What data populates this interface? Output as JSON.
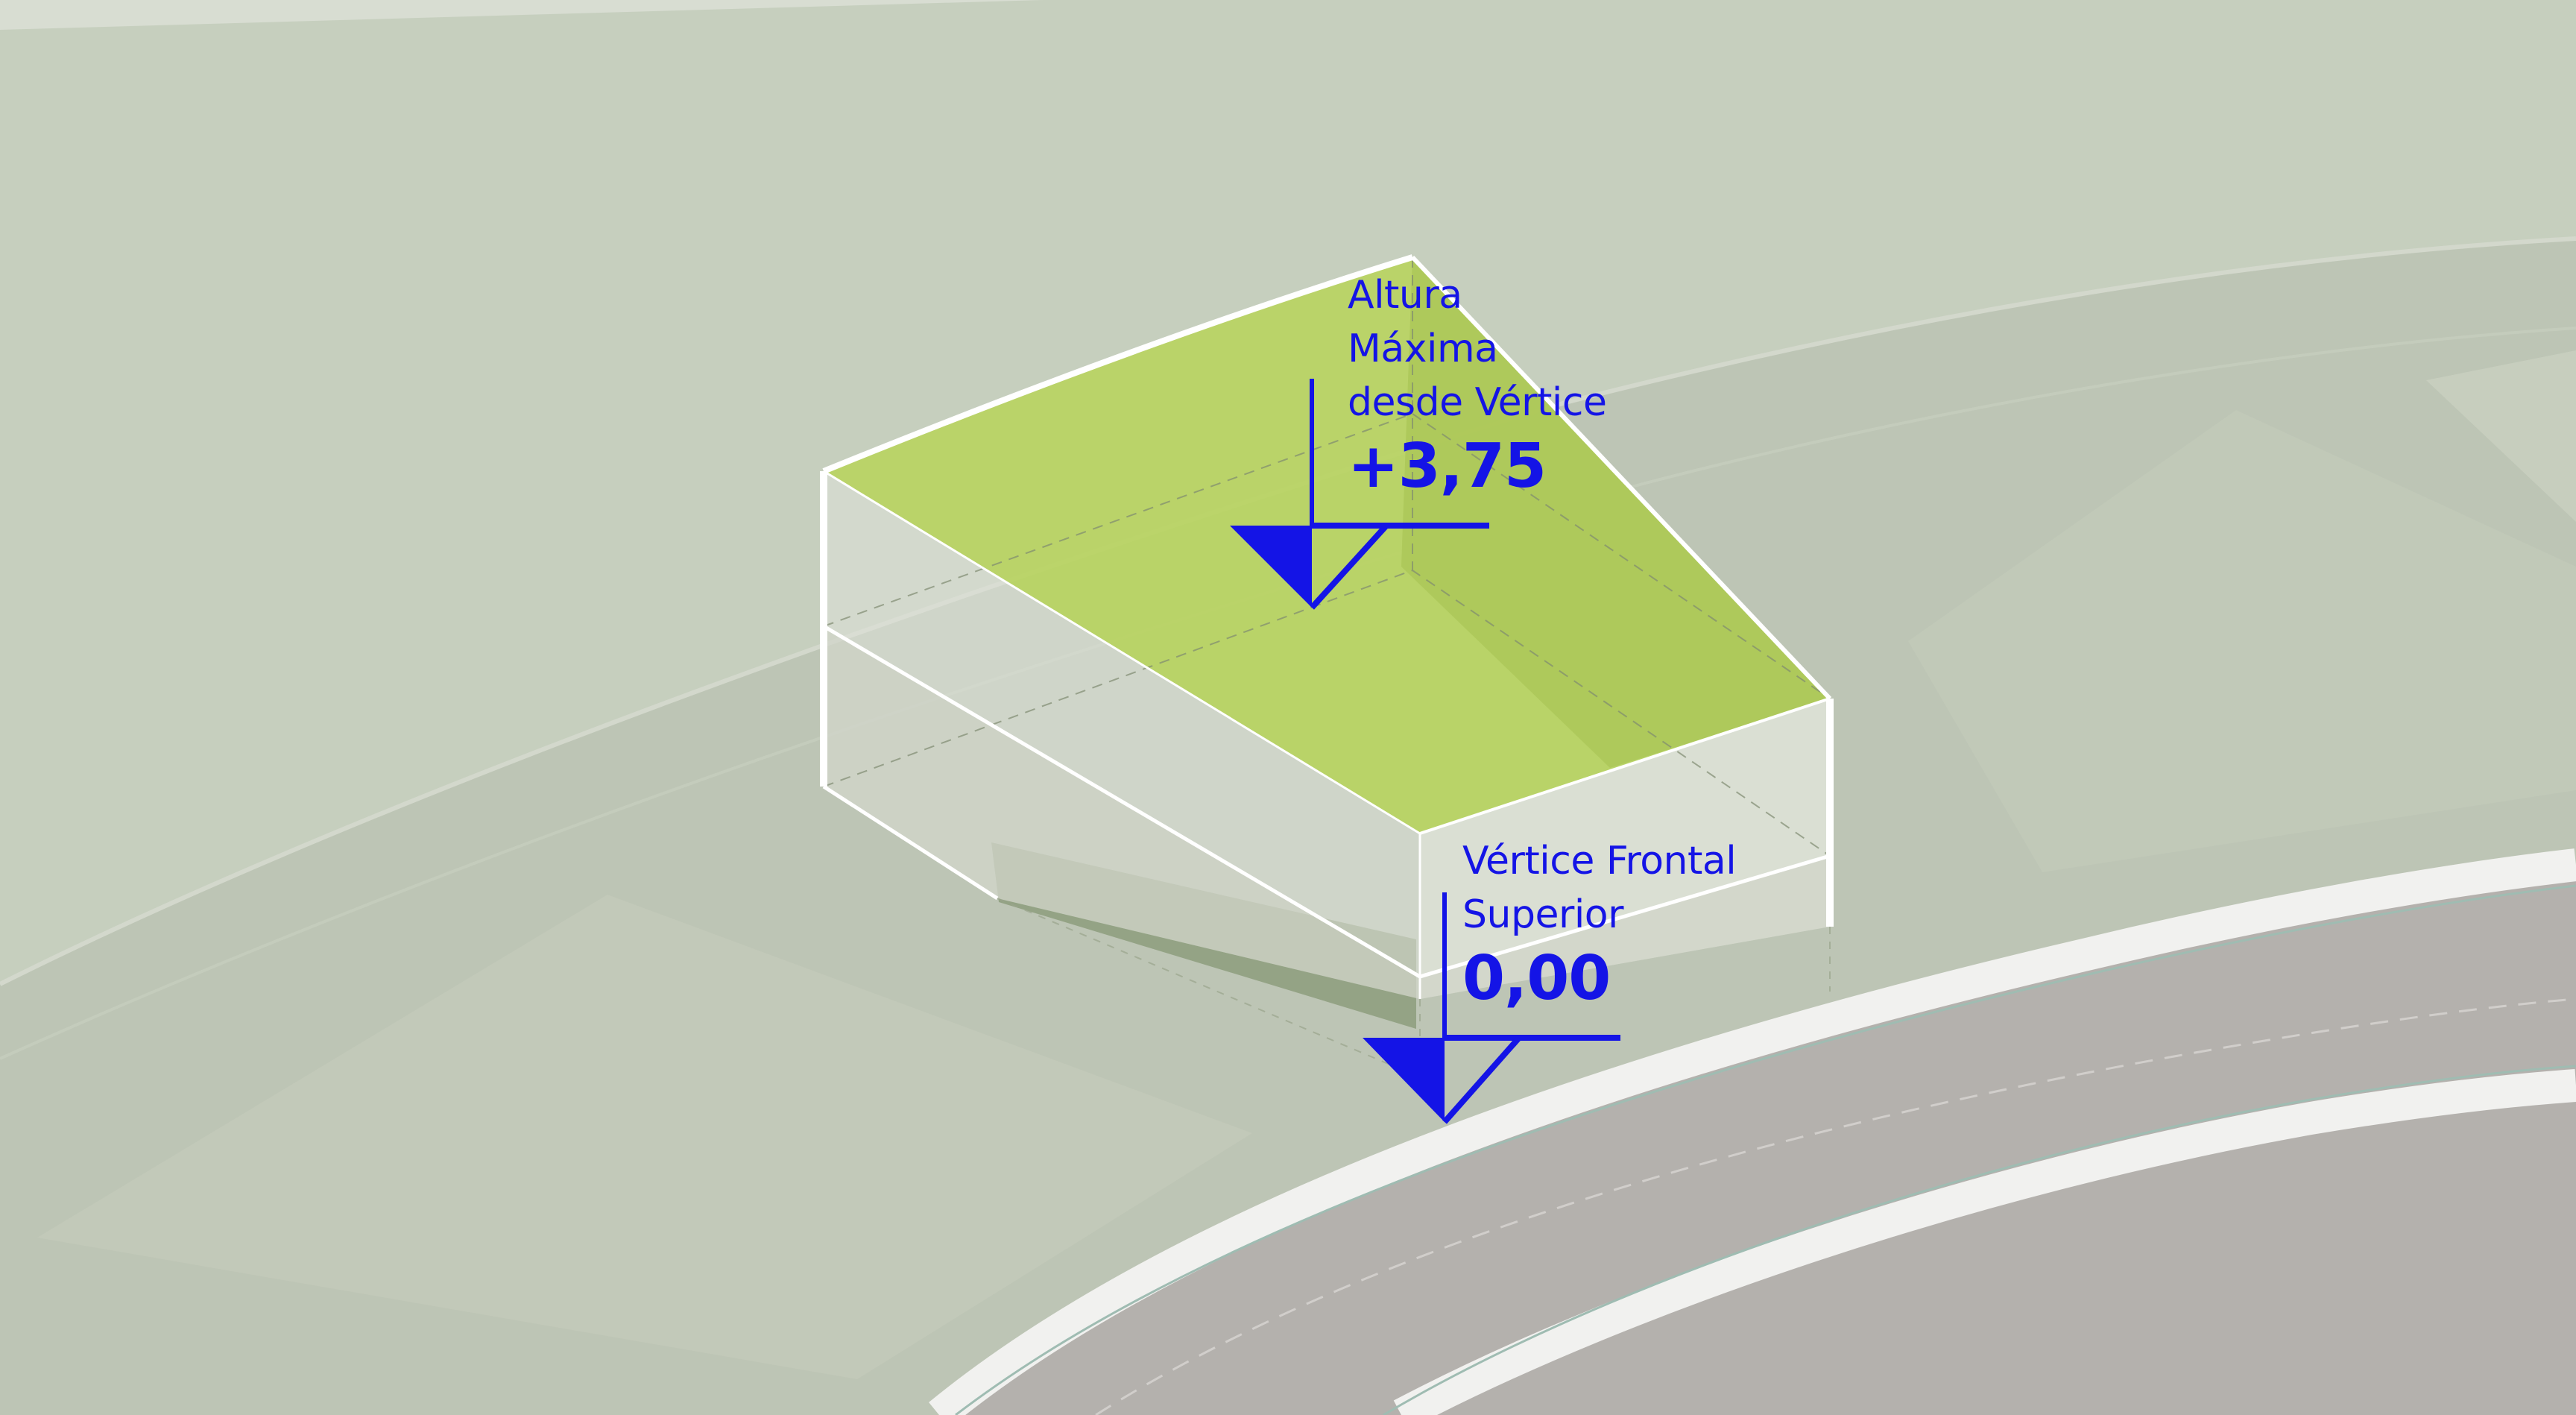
{
  "labels": {
    "max_height": {
      "line1": "Altura",
      "line2": "Máxima",
      "line3": "desde Vértice",
      "value": "+3,75"
    },
    "front_vertex": {
      "line1": "Vértice Frontal",
      "line2": "Superior",
      "value": "0,00"
    }
  },
  "colors": {
    "ground": "#c6cfbe",
    "ground_shade": "#b7bfb0",
    "road": "#b3b0ac",
    "curb": "#f1f1ef",
    "volume_top": "#b9d765",
    "volume_sides": "#e2e5dc",
    "annotation": "#1414e6"
  },
  "icons": {
    "level_marker": "level-marker-icon"
  }
}
